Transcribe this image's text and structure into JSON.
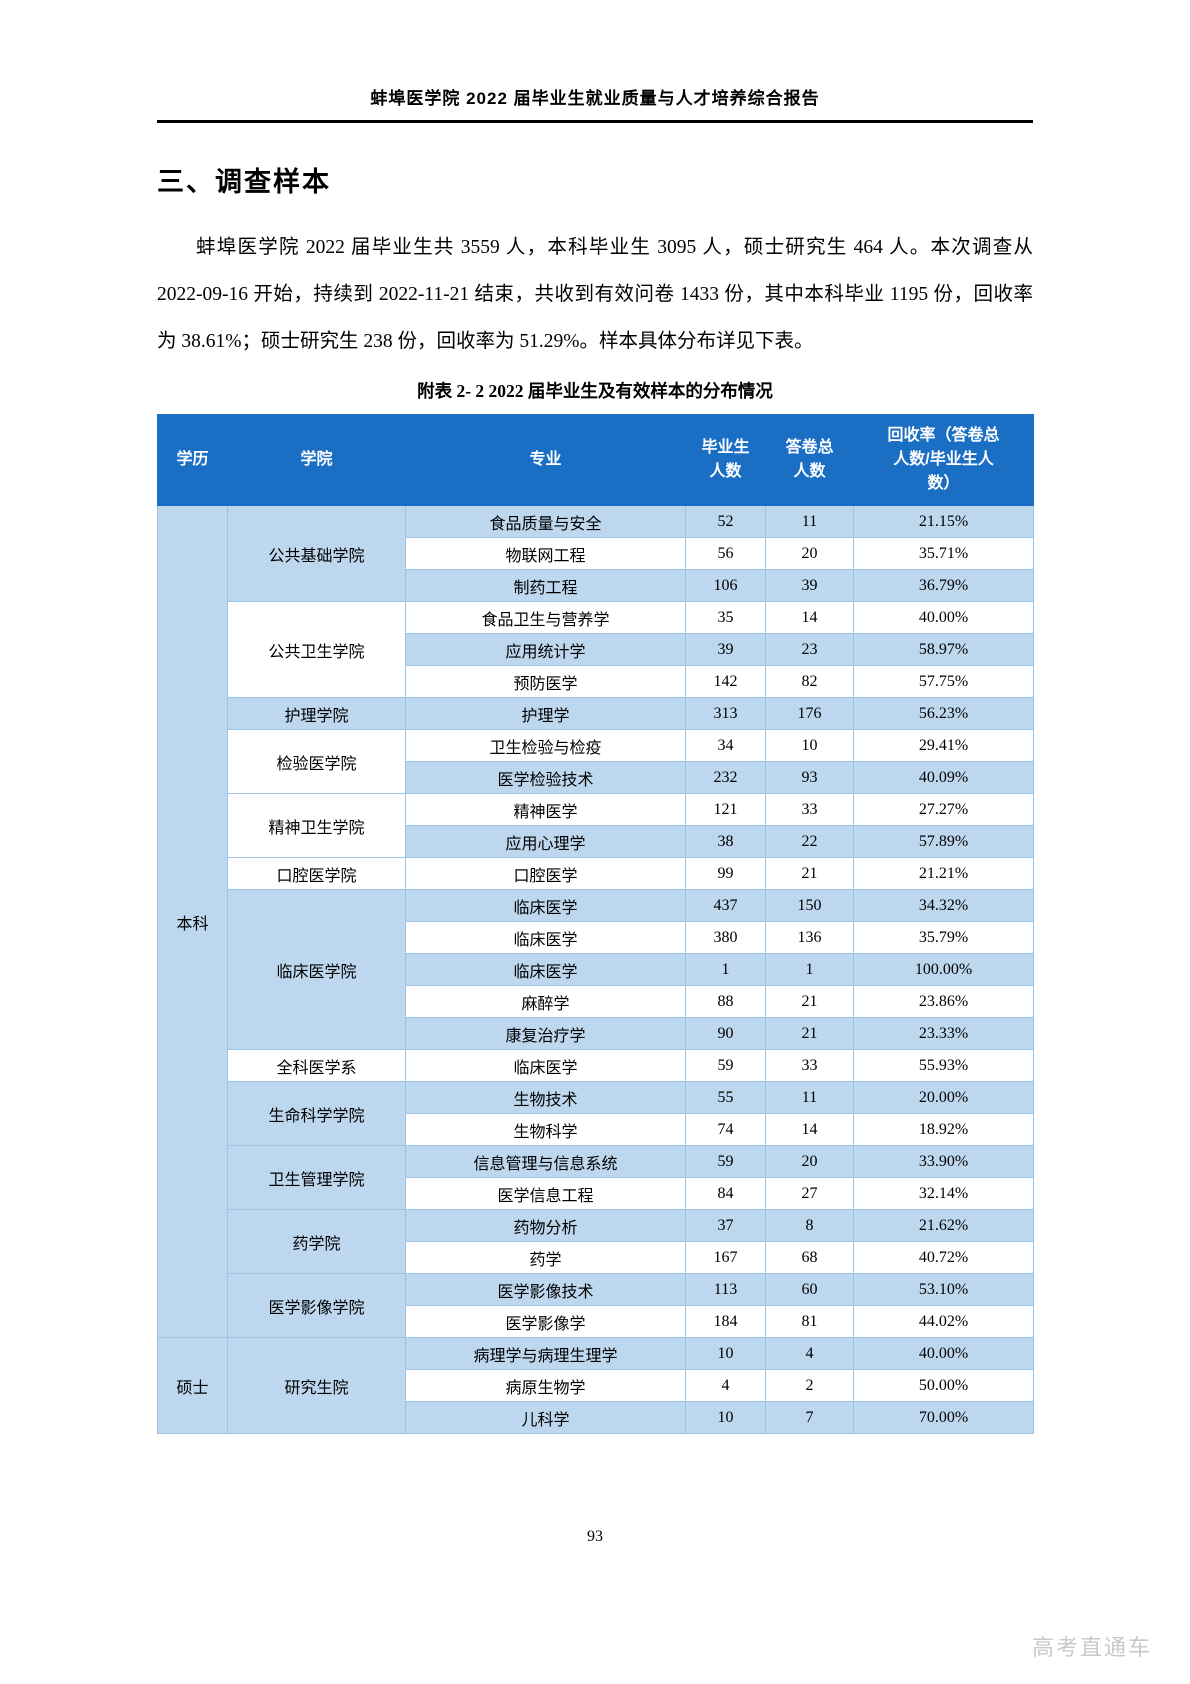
{
  "page": {
    "header_title": "蚌埠医学院 2022 届毕业生就业质量与人才培养综合报告",
    "section_title": "三、调查样本",
    "paragraph": "蚌埠医学院 2022 届毕业生共 3559 人，本科毕业生 3095 人，硕士研究生 464 人。本次调查从 2022-09-16 开始，持续到 2022-11-21 结束，共收到有效问卷 1433 份，其中本科毕业 1195 份，回收率为 38.61%；硕士研究生 238 份，回收率为 51.29%。样本具体分布详见下表。",
    "table_caption": "附表 2- 2  2022 届毕业生及有效样本的分布情况",
    "page_number": "93",
    "watermark": "高考直通车"
  },
  "colors": {
    "table_header_bg": "#1A6FC4",
    "table_alt_row_bg": "#BDD7EE",
    "table_border": "#9DC3E6",
    "watermark_text": "#C9C9C9"
  },
  "table": {
    "headers": [
      "学历",
      "学院",
      "专业",
      "毕业生\n人数",
      "答卷总\n人数",
      "回收率（答卷总\n人数/毕业生人\n数）"
    ],
    "groups": [
      {
        "degree": "本科",
        "colleges": [
          {
            "name": "公共基础学院",
            "majors": [
              [
                "食品质量与安全",
                "52",
                "11",
                "21.15%"
              ],
              [
                "物联网工程",
                "56",
                "20",
                "35.71%"
              ],
              [
                "制药工程",
                "106",
                "39",
                "36.79%"
              ]
            ]
          },
          {
            "name": "公共卫生学院",
            "majors": [
              [
                "食品卫生与营养学",
                "35",
                "14",
                "40.00%"
              ],
              [
                "应用统计学",
                "39",
                "23",
                "58.97%"
              ],
              [
                "预防医学",
                "142",
                "82",
                "57.75%"
              ]
            ]
          },
          {
            "name": "护理学院",
            "majors": [
              [
                "护理学",
                "313",
                "176",
                "56.23%"
              ]
            ]
          },
          {
            "name": "检验医学院",
            "majors": [
              [
                "卫生检验与检疫",
                "34",
                "10",
                "29.41%"
              ],
              [
                "医学检验技术",
                "232",
                "93",
                "40.09%"
              ]
            ]
          },
          {
            "name": "精神卫生学院",
            "majors": [
              [
                "精神医学",
                "121",
                "33",
                "27.27%"
              ],
              [
                "应用心理学",
                "38",
                "22",
                "57.89%"
              ]
            ]
          },
          {
            "name": "口腔医学院",
            "majors": [
              [
                "口腔医学",
                "99",
                "21",
                "21.21%"
              ]
            ]
          },
          {
            "name": "临床医学院",
            "majors": [
              [
                "临床医学",
                "437",
                "150",
                "34.32%"
              ],
              [
                "临床医学",
                "380",
                "136",
                "35.79%"
              ],
              [
                "临床医学",
                "1",
                "1",
                "100.00%"
              ],
              [
                "麻醉学",
                "88",
                "21",
                "23.86%"
              ],
              [
                "康复治疗学",
                "90",
                "21",
                "23.33%"
              ]
            ]
          },
          {
            "name": "全科医学系",
            "majors": [
              [
                "临床医学",
                "59",
                "33",
                "55.93%"
              ]
            ]
          },
          {
            "name": "生命科学学院",
            "majors": [
              [
                "生物技术",
                "55",
                "11",
                "20.00%"
              ],
              [
                "生物科学",
                "74",
                "14",
                "18.92%"
              ]
            ]
          },
          {
            "name": "卫生管理学院",
            "majors": [
              [
                "信息管理与信息系统",
                "59",
                "20",
                "33.90%"
              ],
              [
                "医学信息工程",
                "84",
                "27",
                "32.14%"
              ]
            ]
          },
          {
            "name": "药学院",
            "majors": [
              [
                "药物分析",
                "37",
                "8",
                "21.62%"
              ],
              [
                "药学",
                "167",
                "68",
                "40.72%"
              ]
            ]
          },
          {
            "name": "医学影像学院",
            "majors": [
              [
                "医学影像技术",
                "113",
                "60",
                "53.10%"
              ],
              [
                "医学影像学",
                "184",
                "81",
                "44.02%"
              ]
            ]
          }
        ]
      },
      {
        "degree": "硕士",
        "colleges": [
          {
            "name": "研究生院",
            "majors": [
              [
                "病理学与病理生理学",
                "10",
                "4",
                "40.00%"
              ],
              [
                "病原生物学",
                "4",
                "2",
                "50.00%"
              ],
              [
                "儿科学",
                "10",
                "7",
                "70.00%"
              ]
            ]
          }
        ]
      }
    ]
  }
}
